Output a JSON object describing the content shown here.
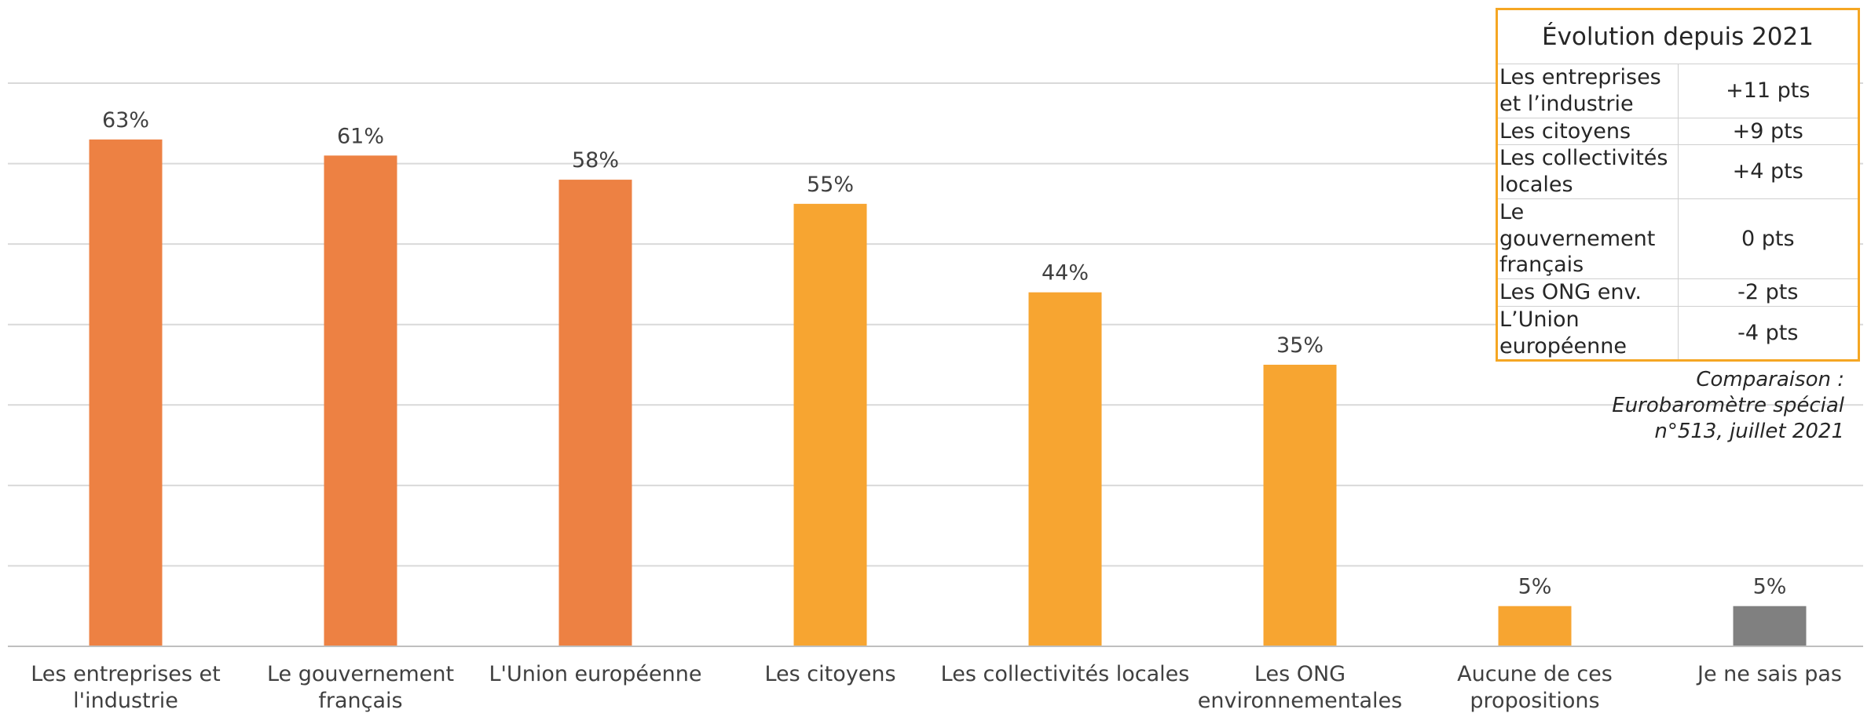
{
  "chart_data": {
    "type": "bar",
    "title": "",
    "xlabel": "",
    "ylabel": "",
    "ylim": [
      0,
      70
    ],
    "grid": true,
    "categories": [
      [
        "Les entreprises et",
        "l'industrie"
      ],
      [
        "Le gouvernement",
        "français"
      ],
      [
        "L'Union européenne"
      ],
      [
        "Les citoyens"
      ],
      [
        "Les collectivités locales"
      ],
      [
        "Les ONG",
        "environnementales"
      ],
      [
        "Aucune de ces",
        "propositions"
      ],
      [
        "Je ne sais pas"
      ]
    ],
    "values": [
      63,
      61,
      58,
      55,
      44,
      35,
      5,
      5
    ],
    "data_labels": [
      "63%",
      "61%",
      "58%",
      "55%",
      "44%",
      "35%",
      "5%",
      "5%"
    ],
    "bar_colors": [
      "#ed8143",
      "#ed8143",
      "#ed8143",
      "#f7a531",
      "#f7a531",
      "#f7a531",
      "#f7a531",
      "#808080"
    ]
  },
  "evolution_table": {
    "title": "Évolution depuis 2021",
    "border_color": "#f5a623",
    "rows": [
      {
        "name": [
          "Les entreprises",
          "et l’industrie"
        ],
        "value": "+11 pts"
      },
      {
        "name": [
          "Les citoyens"
        ],
        "value": "+9 pts"
      },
      {
        "name": [
          "Les collectivités locales"
        ],
        "value": "+4 pts"
      },
      {
        "name": [
          "Le gouvernement",
          "français"
        ],
        "value": "0 pts"
      },
      {
        "name": [
          "Les ONG env."
        ],
        "value": "-2 pts"
      },
      {
        "name": [
          "L’Union européenne"
        ],
        "value": "-4 pts"
      }
    ]
  },
  "comparison_note": {
    "lines": [
      "Comparaison  :",
      "Eurobaromètre spécial",
      "n°513, juillet 2021"
    ]
  }
}
